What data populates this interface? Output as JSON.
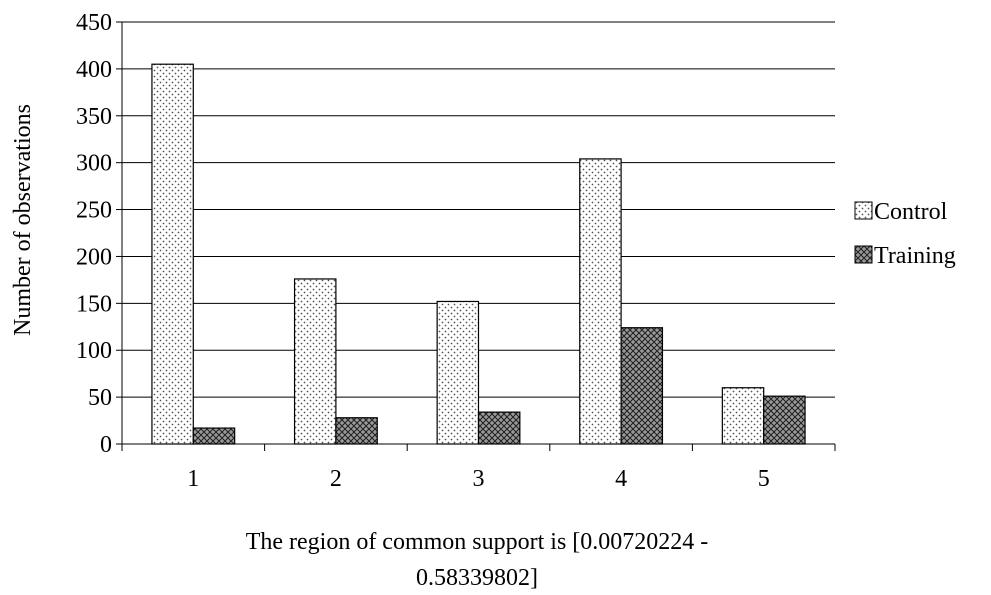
{
  "chart_data": {
    "type": "bar",
    "categories": [
      "1",
      "2",
      "3",
      "4",
      "5"
    ],
    "series": [
      {
        "name": "Control",
        "values": [
          405,
          176,
          152,
          304,
          60
        ],
        "pattern": "dots"
      },
      {
        "name": "Training",
        "values": [
          17,
          28,
          34,
          124,
          51
        ],
        "pattern": "crosshatch"
      }
    ],
    "ylabel": "Number of observations",
    "xlabel_lines": [
      "The region of common support is [0.00720224 -",
      "0.58339802]"
    ],
    "ylim": [
      0,
      450
    ],
    "yticks": [
      0,
      50,
      100,
      150,
      200,
      250,
      300,
      350,
      400,
      450
    ],
    "grid": true,
    "legend_position": "right",
    "colors": {
      "control_fill": "#ffffff",
      "control_dot": "#555555",
      "training_fill": "#9a9a9a",
      "training_hatch": "#222222",
      "gridline": "#000000"
    }
  }
}
